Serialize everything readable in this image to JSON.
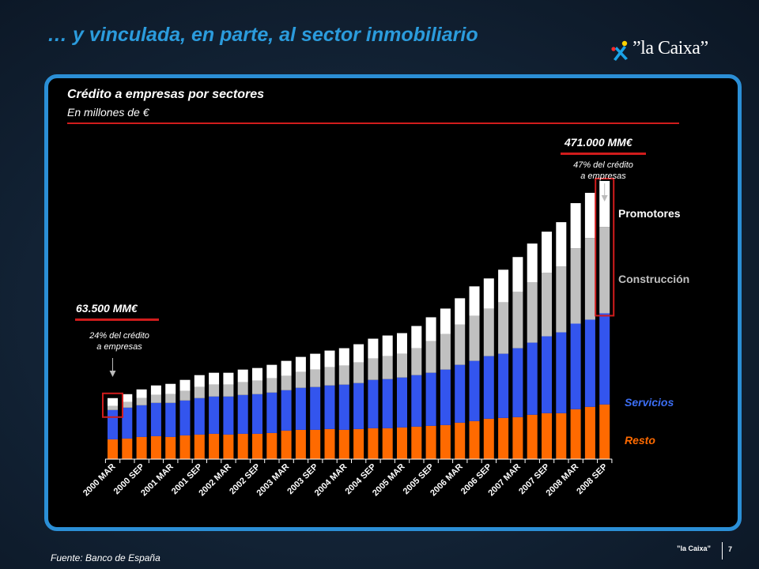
{
  "slide": {
    "title": "… y vinculada, en parte, al sector inmobiliario",
    "logo_text": "”la Caixa”",
    "source": "Fuente: Banco de España",
    "footer_brand": "”la Caixa”",
    "page_number": "7"
  },
  "annotations": {
    "start_value": "63.500  MM€",
    "start_note_1": "24% del crédito",
    "start_note_2": "a empresas",
    "end_value": "471.000  MM€",
    "end_note_1": "47% del crédito",
    "end_note_2": "a empresas"
  },
  "colors": {
    "Resto": "#ff6a00",
    "Servicios": "#3355ee",
    "Construcción": "#c0c0c0",
    "Promotores": "#ffffff",
    "accent_red": "#d01c1c",
    "title_blue": "#2b9bdc"
  },
  "chart_data": {
    "type": "bar",
    "stacked": true,
    "title": "Crédito a empresas por sectores",
    "subtitle": "En millones de €",
    "tick_labels": [
      "2000 MAR",
      "2000 SEP",
      "2001 MAR",
      "2001 SEP",
      "2002 MAR",
      "2002 SEP",
      "2003 MAR",
      "2003 SEP",
      "2004 MAR",
      "2004 SEP",
      "2005 MAR",
      "2005 SEP",
      "2006 MAR",
      "2006 SEP",
      "2007 MAR",
      "2007 SEP",
      "2008 MAR",
      "2008 SEP"
    ],
    "x": [
      "2000 MAR",
      "2000 JUN",
      "2000 SEP",
      "2000 DIC",
      "2001 MAR",
      "2001 JUN",
      "2001 SEP",
      "2001 DIC",
      "2002 MAR",
      "2002 JUN",
      "2002 SEP",
      "2002 DIC",
      "2003 MAR",
      "2003 JUN",
      "2003 SEP",
      "2003 DIC",
      "2004 MAR",
      "2004 JUN",
      "2004 SEP",
      "2004 DIC",
      "2005 MAR",
      "2005 JUN",
      "2005 SEP",
      "2005 DIC",
      "2006 MAR",
      "2006 JUN",
      "2006 SEP",
      "2006 DIC",
      "2007 MAR",
      "2007 JUN",
      "2007 SEP",
      "2007 DIC",
      "2008 MAR",
      "2008 JUN",
      "2008 SEP"
    ],
    "series": [
      {
        "name": "Resto",
        "values": [
          25,
          26,
          28,
          29,
          28,
          30,
          31,
          32,
          31,
          32,
          32,
          33,
          36,
          37,
          37,
          38,
          37,
          38,
          39,
          39,
          40,
          41,
          42,
          43,
          46,
          48,
          51,
          52,
          53,
          56,
          58,
          58,
          63,
          66,
          69
        ]
      },
      {
        "name": "Servicios",
        "values": [
          37,
          39,
          40,
          42,
          43,
          44,
          46,
          47,
          48,
          49,
          50,
          51,
          51,
          53,
          54,
          55,
          57,
          58,
          61,
          62,
          63,
          65,
          67,
          70,
          73,
          76,
          79,
          81,
          87,
          91,
          97,
          102,
          108,
          110,
          115
        ]
      },
      {
        "name": "Construcción",
        "values": [
          5,
          7,
          9,
          10,
          11,
          12,
          14,
          15,
          15,
          16,
          17,
          18,
          18,
          20,
          22,
          23,
          24,
          26,
          27,
          29,
          30,
          34,
          40,
          45,
          51,
          57,
          60,
          65,
          71,
          76,
          80,
          83,
          95,
          103,
          109
        ]
      },
      {
        "name": "Promotores",
        "values": [
          10,
          10,
          11,
          12,
          13,
          14,
          15,
          15,
          15,
          16,
          16,
          17,
          19,
          19,
          20,
          21,
          22,
          23,
          25,
          26,
          26,
          28,
          30,
          32,
          33,
          37,
          38,
          41,
          44,
          49,
          52,
          56,
          57,
          57,
          58
        ]
      }
    ],
    "ylim": [
      0,
      340
    ],
    "grid": false,
    "legend": "right"
  }
}
